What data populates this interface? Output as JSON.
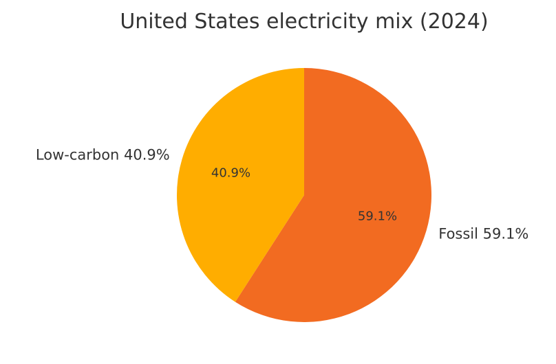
{
  "chart_data": {
    "type": "pie",
    "title": "United States electricity mix (2024)",
    "slices": [
      {
        "name": "Fossil",
        "value": 59.1,
        "color": "#F26B21",
        "label": "Fossil 59.1%",
        "pct_label": "59.1%"
      },
      {
        "name": "Low-carbon",
        "value": 40.9,
        "color": "#FFAD00",
        "label": "Low-carbon 40.9%",
        "pct_label": "40.9%"
      }
    ],
    "legend": "none"
  }
}
